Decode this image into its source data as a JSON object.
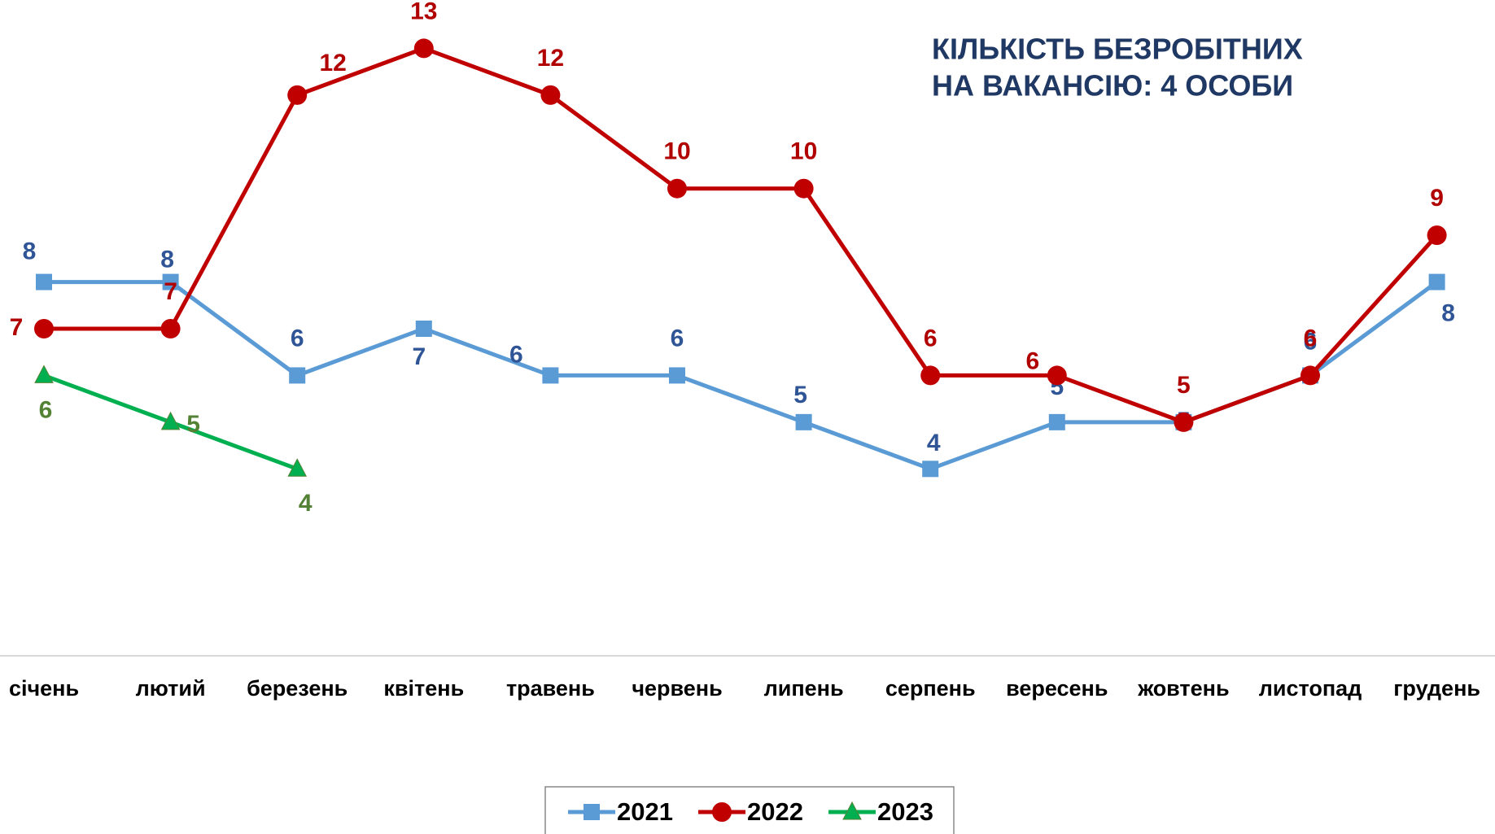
{
  "chart_data": {
    "type": "line",
    "title": [
      "КІЛЬКІСТЬ БЕЗРОБІТНИХ",
      "НА  ВАКАНСІЮ: 4 ОСОБИ"
    ],
    "categories": [
      "січень",
      "лютий",
      "березень",
      "квітень",
      "травень",
      "червень",
      "липень",
      "серпень",
      "вересень",
      "жовтень",
      "листопад",
      "грудень"
    ],
    "ylim": [
      0,
      14
    ],
    "series": [
      {
        "name": "2021",
        "color": "#5b9bd5",
        "label_color": "#2f5597",
        "marker": "square",
        "values": [
          8,
          8,
          6,
          7,
          6,
          6,
          5,
          4,
          5,
          5,
          6,
          8
        ]
      },
      {
        "name": "2022",
        "color": "#c00000",
        "label_color": "#b00000",
        "marker": "circle",
        "values": [
          7,
          7,
          12,
          13,
          12,
          10,
          10,
          6,
          6,
          5,
          6,
          9
        ]
      },
      {
        "name": "2023",
        "color": "#00b050",
        "label_color": "#548235",
        "marker": "triangle",
        "values": [
          6,
          5,
          4,
          null,
          null,
          null,
          null,
          null,
          null,
          null,
          null,
          null
        ]
      }
    ]
  }
}
